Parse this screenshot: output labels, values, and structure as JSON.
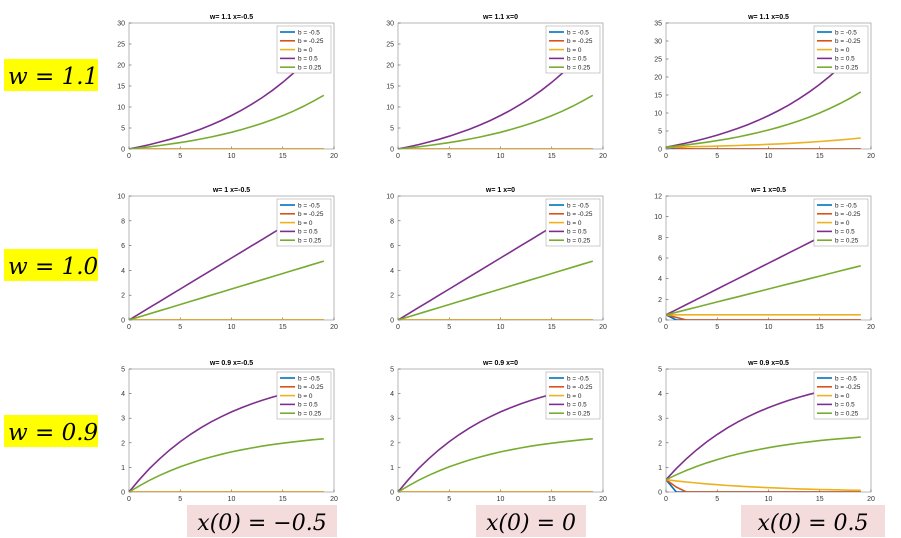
{
  "figure": {
    "row_labels": [
      "w = 1.1",
      "w = 1.0",
      "w = 0.9"
    ],
    "col_labels": [
      "x(0) = −0.5",
      "x(0) = 0",
      "x(0) = 0.5"
    ],
    "row_label_bg": "#ffff00",
    "col_label_bg": "#f5dcdc"
  },
  "legend": [
    "b = -0.5",
    "b = -0.25",
    "b = 0",
    "b = 0.5",
    "b = 0.25"
  ],
  "colors": [
    "#0072bd",
    "#d95319",
    "#edb120",
    "#7e2f8e",
    "#77ac30"
  ],
  "xticks": [
    0,
    5,
    10,
    15,
    20
  ],
  "chart_data": [
    {
      "type": "line",
      "title": "w= 1.1 x=-0.5",
      "w": 1.1,
      "x0": -0.5,
      "xlim": [
        0,
        20
      ],
      "ylim": [
        0,
        30
      ],
      "yticks": [
        0,
        5,
        10,
        15,
        20,
        25,
        30
      ],
      "legend": "top-right"
    },
    {
      "type": "line",
      "title": "w= 1.1 x=0",
      "w": 1.1,
      "x0": 0,
      "xlim": [
        0,
        20
      ],
      "ylim": [
        0,
        30
      ],
      "yticks": [
        0,
        5,
        10,
        15,
        20,
        25,
        30
      ],
      "legend": "top-right"
    },
    {
      "type": "line",
      "title": "w= 1.1 x=0.5",
      "w": 1.1,
      "x0": 0.5,
      "xlim": [
        0,
        20
      ],
      "ylim": [
        0,
        35
      ],
      "yticks": [
        0,
        5,
        10,
        15,
        20,
        25,
        30,
        35
      ],
      "legend": "top-right"
    },
    {
      "type": "line",
      "title": "w= 1 x=-0.5",
      "w": 1.0,
      "x0": -0.5,
      "xlim": [
        0,
        20
      ],
      "ylim": [
        0,
        10
      ],
      "yticks": [
        0,
        2,
        4,
        6,
        8,
        10
      ],
      "legend": "top-right"
    },
    {
      "type": "line",
      "title": "w= 1 x=0",
      "w": 1.0,
      "x0": 0,
      "xlim": [
        0,
        20
      ],
      "ylim": [
        0,
        10
      ],
      "yticks": [
        0,
        2,
        4,
        6,
        8,
        10
      ],
      "legend": "top-right"
    },
    {
      "type": "line",
      "title": "w= 1 x=0.5",
      "w": 1.0,
      "x0": 0.5,
      "xlim": [
        0,
        20
      ],
      "ylim": [
        0,
        12
      ],
      "yticks": [
        0,
        2,
        4,
        6,
        8,
        10,
        12
      ],
      "legend": "top-right"
    },
    {
      "type": "line",
      "title": "w= 0.9 x=-0.5",
      "w": 0.9,
      "x0": -0.5,
      "xlim": [
        0,
        20
      ],
      "ylim": [
        0,
        5
      ],
      "yticks": [
        0,
        1,
        2,
        3,
        4,
        5
      ],
      "legend": "top-right"
    },
    {
      "type": "line",
      "title": "w= 0.9 x=0",
      "w": 0.9,
      "x0": 0,
      "xlim": [
        0,
        20
      ],
      "ylim": [
        0,
        5
      ],
      "yticks": [
        0,
        1,
        2,
        3,
        4,
        5
      ],
      "legend": "top-right"
    },
    {
      "type": "line",
      "title": "w= 0.9 x=0.5",
      "w": 0.9,
      "x0": 0.5,
      "xlim": [
        0,
        20
      ],
      "ylim": [
        0,
        5
      ],
      "yticks": [
        0,
        1,
        2,
        3,
        4,
        5
      ],
      "legend": "top-right"
    }
  ]
}
